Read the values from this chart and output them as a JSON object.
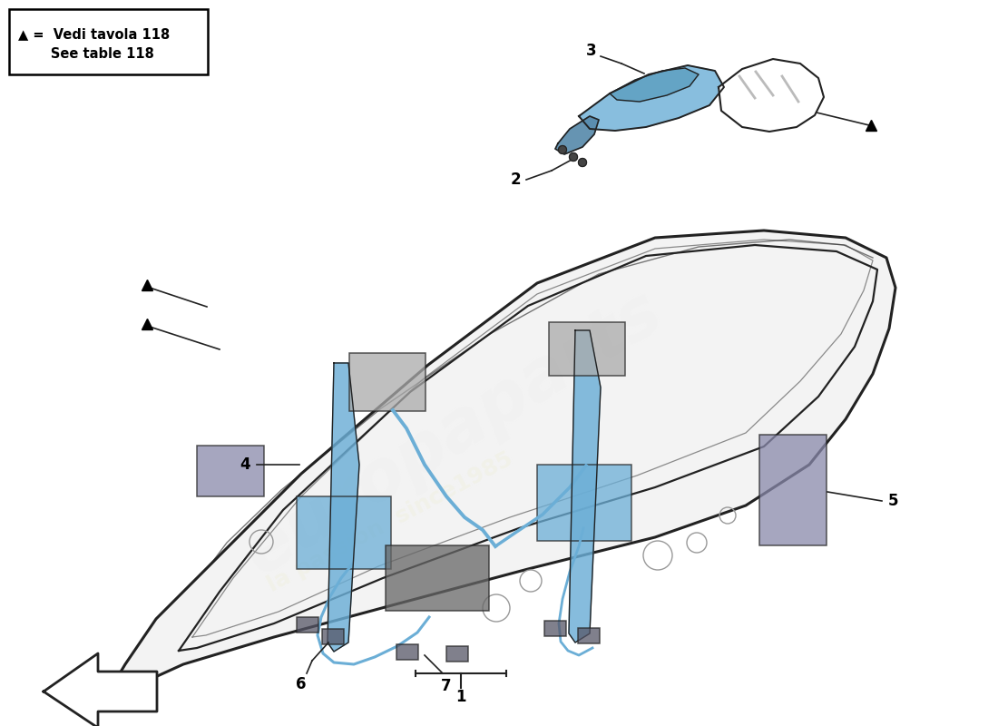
{
  "bg_color": "#ffffff",
  "legend_line1": "▲ =  Vedi tavola 118",
  "legend_line2": "       See table 118",
  "door_fill": "#f2f2f2",
  "door_stroke": "#222222",
  "blue_fill": "#6baed6",
  "blue_stroke": "#2171b5",
  "gray_fill": "#aaaaaa",
  "dark_fill": "#555566",
  "figsize": [
    11.0,
    8.0
  ],
  "dpi": 100
}
